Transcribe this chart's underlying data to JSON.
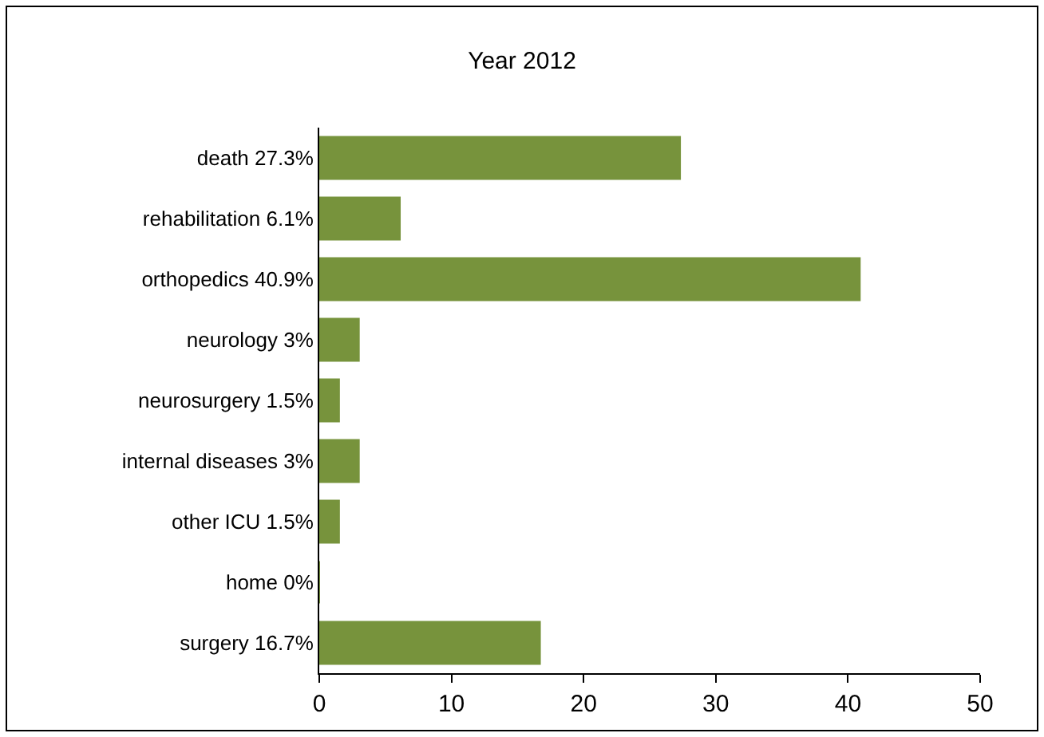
{
  "chart_data": {
    "type": "bar",
    "orientation": "horizontal",
    "title": "Year 2012",
    "categories": [
      "death 27.3%",
      "rehabilitation 6.1%",
      "orthopedics 40.9%",
      "neurology 3%",
      "neurosurgery 1.5%",
      "internal diseases 3%",
      "other ICU 1.5%",
      "home 0%",
      "surgery 16.7%"
    ],
    "values": [
      27.3,
      6.1,
      40.9,
      3,
      1.5,
      3,
      1.5,
      0,
      16.7
    ],
    "color": "#77933c",
    "xlim": [
      0,
      50
    ],
    "xticks": [
      0,
      10,
      20,
      30,
      40,
      50
    ]
  }
}
